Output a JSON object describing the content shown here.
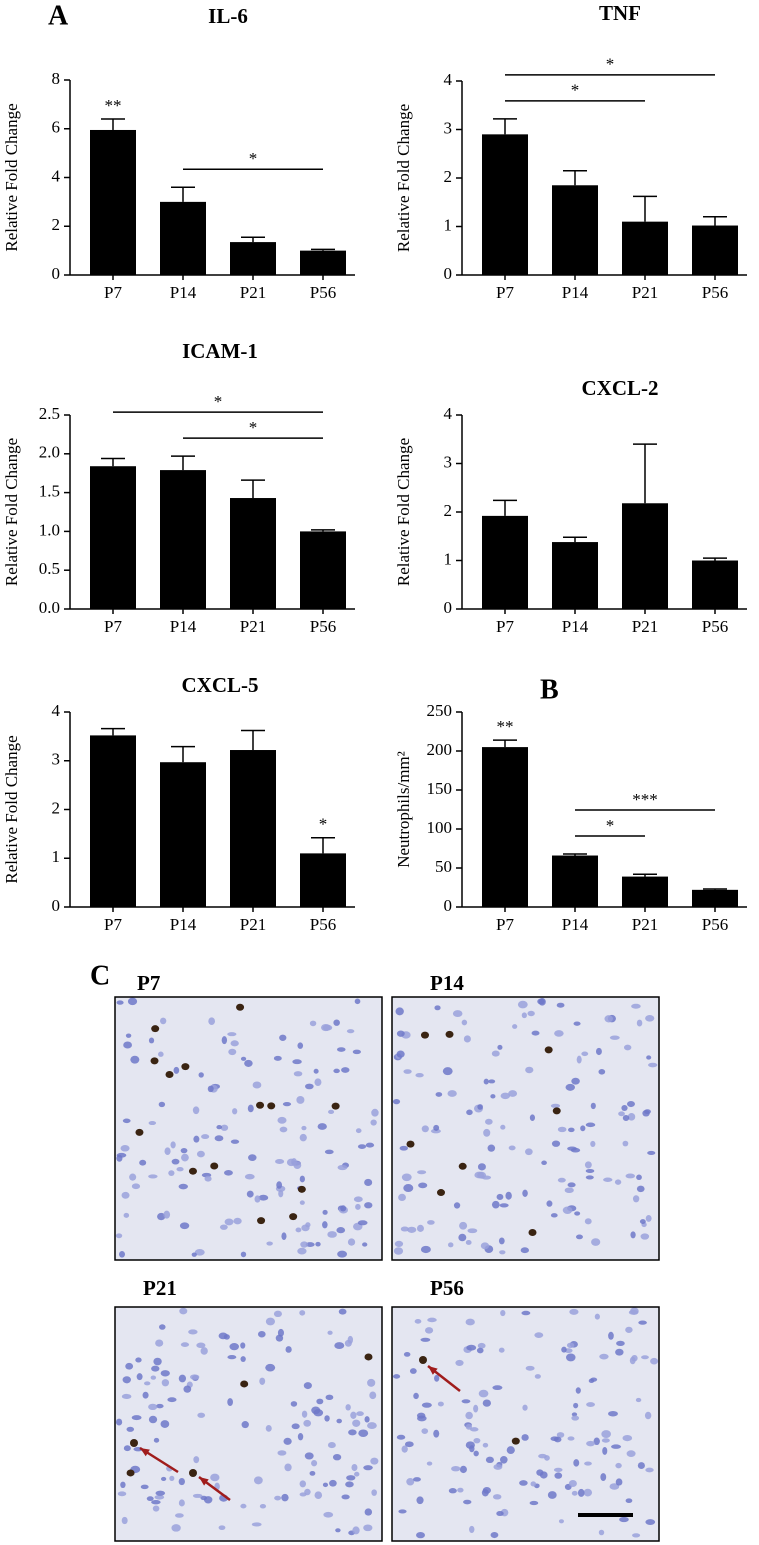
{
  "figure": {
    "panel_labels": [
      "A",
      "B",
      "C"
    ],
    "micrograph_labels": [
      "P7",
      "P14",
      "P21",
      "P56"
    ]
  },
  "chart_data": [
    {
      "type": "bar",
      "title": "IL-6",
      "y_label": "Relative Fold Change",
      "color": "#000000",
      "categories": [
        "P7",
        "P14",
        "P21",
        "P56"
      ],
      "values": [
        5.95,
        3.0,
        1.35,
        1.0
      ],
      "errors": [
        0.45,
        0.6,
        0.2,
        0.05
      ],
      "ylim": [
        0,
        8
      ],
      "yticks": [
        0,
        2,
        4,
        6,
        8
      ],
      "annotations": [
        {
          "text": "**",
          "at": "P7"
        },
        {
          "text": "*",
          "from": "P14",
          "to": "P56"
        }
      ]
    },
    {
      "type": "bar",
      "title": "TNF",
      "y_label": "Relative Fold Change",
      "color": "#000000",
      "categories": [
        "P7",
        "P14",
        "P21",
        "P56"
      ],
      "values": [
        2.9,
        1.85,
        1.1,
        1.02
      ],
      "errors": [
        0.32,
        0.3,
        0.52,
        0.18
      ],
      "ylim": [
        0,
        4
      ],
      "yticks": [
        0,
        1,
        2,
        3,
        4
      ],
      "annotations": [
        {
          "text": "*",
          "from": "P7",
          "to": "P21"
        },
        {
          "text": "*",
          "from": "P7",
          "to": "P56"
        }
      ]
    },
    {
      "type": "bar",
      "title": "ICAM-1",
      "y_label": "Relative Fold Change",
      "color": "#000000",
      "categories": [
        "P7",
        "P14",
        "P21",
        "P56"
      ],
      "values": [
        1.84,
        1.79,
        1.43,
        1.0
      ],
      "errors": [
        0.1,
        0.18,
        0.23,
        0.02
      ],
      "ylim": [
        0,
        2.5
      ],
      "yticks": [
        {
          "value": 0,
          "label": "0.0"
        },
        0.5,
        {
          "value": 1,
          "label": "1.0"
        },
        1.5,
        {
          "value": 2,
          "label": "2.0"
        },
        2.5
      ],
      "annotations": [
        {
          "text": "*",
          "from": "P14",
          "to": "P56"
        },
        {
          "text": "*",
          "from": "P7",
          "to": "P56"
        }
      ]
    },
    {
      "type": "bar",
      "title": "CXCL-2",
      "y_label": "Relative Fold Change",
      "color": "#000000",
      "categories": [
        "P7",
        "P14",
        "P21",
        "P56"
      ],
      "values": [
        1.92,
        1.38,
        2.18,
        1.0
      ],
      "errors": [
        0.32,
        0.1,
        1.22,
        0.05
      ],
      "ylim": [
        0,
        4
      ],
      "yticks": [
        0,
        1,
        2,
        3,
        4
      ],
      "annotations": []
    },
    {
      "type": "bar",
      "title": "CXCL-5",
      "y_label": "Relative Fold Change",
      "color": "#000000",
      "categories": [
        "P7",
        "P14",
        "P21",
        "P56"
      ],
      "values": [
        3.52,
        2.97,
        3.22,
        1.1
      ],
      "errors": [
        0.14,
        0.32,
        0.4,
        0.32
      ],
      "ylim": [
        0,
        4
      ],
      "yticks": [
        0,
        1,
        2,
        3,
        4
      ],
      "annotations": [
        {
          "text": "*",
          "at": "P56"
        }
      ]
    },
    {
      "type": "bar",
      "y_label": "Neutrophils/mm²",
      "color": "#000000",
      "categories": [
        "P7",
        "P14",
        "P21",
        "P56"
      ],
      "values": [
        205,
        66,
        39,
        22
      ],
      "errors": [
        9,
        2,
        3,
        1
      ],
      "ylim": [
        0,
        250
      ],
      "yticks": [
        0,
        50,
        100,
        150,
        200,
        250
      ],
      "annotations": [
        {
          "text": "**",
          "at": "P7"
        },
        {
          "text": "*",
          "from": "P14",
          "to": "P21"
        },
        {
          "text": "***",
          "from": "P14",
          "to": "P56"
        }
      ]
    }
  ]
}
